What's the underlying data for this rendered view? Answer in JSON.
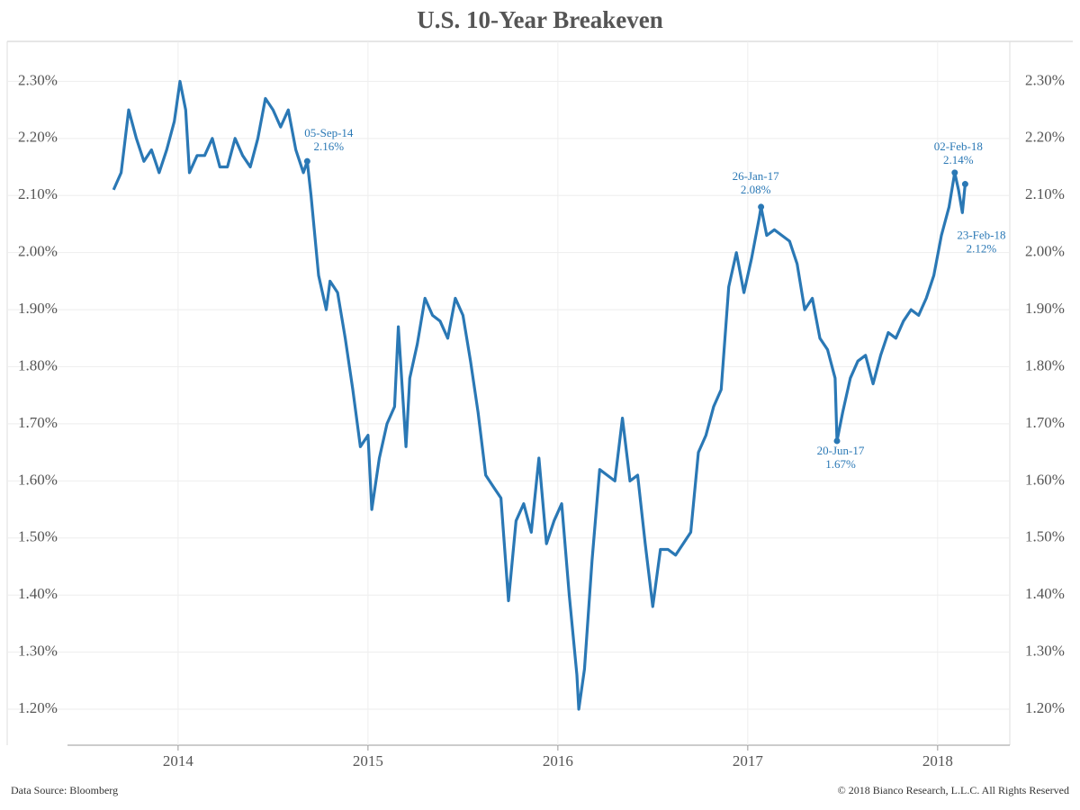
{
  "chart_data": {
    "type": "line",
    "title": "U.S. 10-Year Breakeven",
    "source": "Data Source: Bloomberg",
    "copyright": "© 2018 Bianco Research, L.L.C. All Rights Reserved",
    "xlim": [
      2013.1,
      2018.38
    ],
    "xticks": [
      2014,
      2015,
      2016,
      2017,
      2018
    ],
    "ylim": [
      1.137,
      2.37
    ],
    "yticks": [
      {
        "value": 1.2,
        "label": "1.20%"
      },
      {
        "value": 1.3,
        "label": "1.30%"
      },
      {
        "value": 1.4,
        "label": "1.40%"
      },
      {
        "value": 1.5,
        "label": "1.50%"
      },
      {
        "value": 1.6,
        "label": "1.60%"
      },
      {
        "value": 1.7,
        "label": "1.70%"
      },
      {
        "value": 1.8,
        "label": "1.80%"
      },
      {
        "value": 1.9,
        "label": "1.90%"
      },
      {
        "value": 2.0,
        "label": "2.00%"
      },
      {
        "value": 2.1,
        "label": "2.10%"
      },
      {
        "value": 2.2,
        "label": "2.20%"
      },
      {
        "value": 2.3,
        "label": "2.30%"
      }
    ],
    "grid": true,
    "series": [
      {
        "color": "#2a78b5",
        "x": [
          2013.66,
          2013.7,
          2013.74,
          2013.78,
          2013.82,
          2013.86,
          2013.9,
          2013.94,
          2013.98,
          2014.01,
          2014.04,
          2014.06,
          2014.1,
          2014.14,
          2014.18,
          2014.22,
          2014.26,
          2014.3,
          2014.34,
          2014.38,
          2014.42,
          2014.46,
          2014.5,
          2014.54,
          2014.58,
          2014.62,
          2014.66,
          2014.68,
          2014.7,
          2014.74,
          2014.78,
          2014.8,
          2014.84,
          2014.88,
          2014.92,
          2014.96,
          2015.0,
          2015.02,
          2015.06,
          2015.1,
          2015.14,
          2015.16,
          2015.2,
          2015.22,
          2015.26,
          2015.3,
          2015.34,
          2015.38,
          2015.42,
          2015.46,
          2015.5,
          2015.54,
          2015.58,
          2015.62,
          2015.66,
          2015.7,
          2015.74,
          2015.78,
          2015.82,
          2015.86,
          2015.9,
          2015.94,
          2015.98,
          2016.02,
          2016.06,
          2016.1,
          2016.11,
          2016.14,
          2016.18,
          2016.22,
          2016.26,
          2016.3,
          2016.34,
          2016.38,
          2016.42,
          2016.46,
          2016.5,
          2016.54,
          2016.58,
          2016.62,
          2016.66,
          2016.7,
          2016.74,
          2016.78,
          2016.82,
          2016.86,
          2016.9,
          2016.94,
          2016.98,
          2017.02,
          2017.06,
          2017.07,
          2017.1,
          2017.14,
          2017.18,
          2017.22,
          2017.26,
          2017.3,
          2017.34,
          2017.38,
          2017.42,
          2017.46,
          2017.47,
          2017.5,
          2017.54,
          2017.58,
          2017.62,
          2017.66,
          2017.7,
          2017.74,
          2017.78,
          2017.82,
          2017.86,
          2017.9,
          2017.94,
          2017.98,
          2018.02,
          2018.06,
          2018.09,
          2018.11,
          2018.13,
          2018.145
        ],
        "values": [
          2.11,
          2.14,
          2.25,
          2.2,
          2.16,
          2.18,
          2.14,
          2.18,
          2.23,
          2.3,
          2.25,
          2.14,
          2.17,
          2.17,
          2.2,
          2.15,
          2.15,
          2.2,
          2.17,
          2.15,
          2.2,
          2.27,
          2.25,
          2.22,
          2.25,
          2.18,
          2.14,
          2.16,
          2.1,
          1.96,
          1.9,
          1.95,
          1.93,
          1.85,
          1.76,
          1.66,
          1.68,
          1.55,
          1.64,
          1.7,
          1.73,
          1.87,
          1.66,
          1.78,
          1.84,
          1.92,
          1.89,
          1.88,
          1.85,
          1.92,
          1.89,
          1.81,
          1.72,
          1.61,
          1.59,
          1.57,
          1.39,
          1.53,
          1.56,
          1.51,
          1.64,
          1.49,
          1.53,
          1.56,
          1.4,
          1.26,
          1.2,
          1.27,
          1.46,
          1.62,
          1.61,
          1.6,
          1.71,
          1.6,
          1.61,
          1.49,
          1.38,
          1.48,
          1.48,
          1.47,
          1.49,
          1.51,
          1.65,
          1.68,
          1.73,
          1.76,
          1.94,
          2.0,
          1.93,
          1.99,
          2.06,
          2.08,
          2.03,
          2.04,
          2.03,
          2.02,
          1.98,
          1.9,
          1.92,
          1.85,
          1.83,
          1.78,
          1.67,
          1.72,
          1.78,
          1.81,
          1.82,
          1.77,
          1.82,
          1.86,
          1.85,
          1.88,
          1.9,
          1.89,
          1.92,
          1.96,
          2.03,
          2.08,
          2.14,
          2.11,
          2.07,
          2.12
        ]
      }
    ],
    "annotations": [
      {
        "label": "05-Sep-14",
        "value_label": "2.16%",
        "x": 2014.68,
        "value": 2.16
      },
      {
        "label": "26-Jan-17",
        "value_label": "2.08%",
        "x": 2017.07,
        "value": 2.08
      },
      {
        "label": "20-Jun-17",
        "value_label": "1.67%",
        "x": 2017.47,
        "value": 1.67
      },
      {
        "label": "02-Feb-18",
        "value_label": "2.14%",
        "x": 2018.09,
        "value": 2.14
      },
      {
        "label": "23-Feb-18",
        "value_label": "2.12%",
        "x": 2018.145,
        "value": 2.12
      }
    ]
  }
}
